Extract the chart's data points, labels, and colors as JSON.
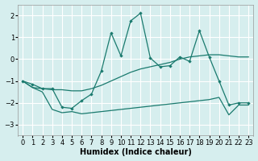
{
  "xlabel": "Humidex (Indice chaleur)",
  "bg_color": "#d6eeee",
  "grid_color": "#ffffff",
  "line_color": "#1a7a6e",
  "xlim": [
    -0.5,
    23.5
  ],
  "ylim": [
    -3.5,
    2.5
  ],
  "yticks": [
    -3,
    -2,
    -1,
    0,
    1,
    2
  ],
  "xticks": [
    0,
    1,
    2,
    3,
    4,
    5,
    6,
    7,
    8,
    9,
    10,
    11,
    12,
    13,
    14,
    15,
    16,
    17,
    18,
    19,
    20,
    21,
    22,
    23
  ],
  "series1_x": [
    0,
    1,
    2,
    3,
    4,
    5,
    6,
    7,
    8,
    9,
    10,
    11,
    12,
    13,
    14,
    15,
    16,
    17,
    18,
    19,
    20,
    21,
    22,
    23
  ],
  "series1_y": [
    -1.0,
    -1.15,
    -1.35,
    -1.35,
    -2.2,
    -2.25,
    -1.9,
    -1.6,
    -0.55,
    1.2,
    0.15,
    1.75,
    2.1,
    0.05,
    -0.35,
    -0.3,
    0.1,
    -0.1,
    1.3,
    0.1,
    -1.0,
    -2.1,
    -2.0,
    -2.0
  ],
  "series2_x": [
    0,
    1,
    2,
    3,
    4,
    5,
    6,
    7,
    8,
    9,
    10,
    11,
    12,
    13,
    14,
    15,
    16,
    17,
    18,
    19,
    20,
    21,
    22,
    23
  ],
  "series2_y": [
    -1.0,
    -1.3,
    -1.35,
    -1.4,
    -1.4,
    -1.45,
    -1.45,
    -1.35,
    -1.2,
    -1.0,
    -0.8,
    -0.6,
    -0.45,
    -0.35,
    -0.25,
    -0.15,
    -0.0,
    0.1,
    0.15,
    0.2,
    0.2,
    0.15,
    0.1,
    0.1
  ],
  "series3_x": [
    0,
    1,
    2,
    3,
    4,
    5,
    6,
    7,
    8,
    9,
    10,
    11,
    12,
    13,
    14,
    15,
    16,
    17,
    18,
    19,
    20,
    21,
    22,
    23
  ],
  "series3_y": [
    -1.0,
    -1.3,
    -1.5,
    -2.3,
    -2.45,
    -2.4,
    -2.5,
    -2.45,
    -2.4,
    -2.35,
    -2.3,
    -2.25,
    -2.2,
    -2.15,
    -2.1,
    -2.05,
    -2.0,
    -1.95,
    -1.9,
    -1.85,
    -1.75,
    -2.55,
    -2.1,
    -2.1
  ],
  "fontsize_label": 7,
  "fontsize_tick": 6
}
